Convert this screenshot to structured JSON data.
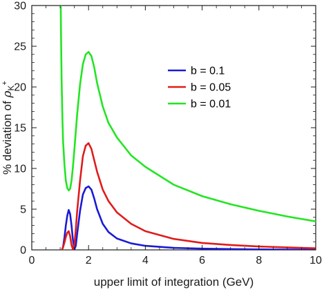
{
  "chart_data": {
    "type": "line",
    "title": "",
    "xlabel": "upper limit of integration (GeV)",
    "ylabel": "% deviation of ",
    "ylabel_symbol": "ρ",
    "ylabel_subscript": "K",
    "ylabel_superscript": "+",
    "xlim": [
      0,
      10
    ],
    "ylim": [
      0,
      30
    ],
    "xticks": [
      0,
      2,
      4,
      6,
      8,
      10
    ],
    "yticks": [
      0,
      5,
      10,
      15,
      20,
      25,
      30
    ],
    "xtick_labels": [
      "0",
      "2",
      "4",
      "6",
      "8",
      "10"
    ],
    "ytick_labels": [
      "0",
      "5",
      "10",
      "15",
      "20",
      "25",
      "30"
    ],
    "grid": false,
    "legend_position": "top-right",
    "series": [
      {
        "name": "b = 0.1",
        "color": "#1a1ad6",
        "x": [
          1.06,
          1.1,
          1.15,
          1.2,
          1.25,
          1.3,
          1.35,
          1.4,
          1.45,
          1.5,
          1.55,
          1.6,
          1.7,
          1.8,
          1.9,
          2.0,
          2.1,
          2.2,
          2.3,
          2.5,
          2.7,
          3.0,
          3.5,
          4.0,
          5.0,
          6.0,
          7.0,
          8.0,
          9.0,
          10.0
        ],
        "y": [
          0,
          0.3,
          1.5,
          3.0,
          4.2,
          4.9,
          4.4,
          3.0,
          1.2,
          0.05,
          0.5,
          2.0,
          4.8,
          6.8,
          7.6,
          7.8,
          7.4,
          6.3,
          5.0,
          3.2,
          2.2,
          1.4,
          0.8,
          0.5,
          0.25,
          0.15,
          0.1,
          0.06,
          0.04,
          0.03
        ]
      },
      {
        "name": "b = 0.05",
        "color": "#e01b1b",
        "x": [
          1.06,
          1.1,
          1.15,
          1.2,
          1.25,
          1.3,
          1.35,
          1.4,
          1.45,
          1.5,
          1.55,
          1.6,
          1.7,
          1.8,
          1.9,
          2.0,
          2.1,
          2.2,
          2.3,
          2.5,
          2.7,
          3.0,
          3.5,
          4.0,
          5.0,
          6.0,
          7.0,
          8.0,
          9.0,
          10.0
        ],
        "y": [
          0,
          0.3,
          0.9,
          1.6,
          2.1,
          2.3,
          1.7,
          0.6,
          0.05,
          0.6,
          2.5,
          4.8,
          8.5,
          11.5,
          12.8,
          13.1,
          12.4,
          11.0,
          9.6,
          7.4,
          6.0,
          4.6,
          3.2,
          2.3,
          1.35,
          0.85,
          0.6,
          0.42,
          0.3,
          0.2
        ]
      },
      {
        "name": "b = 0.01",
        "color": "#22e522",
        "x": [
          1.02,
          1.03,
          1.05,
          1.08,
          1.1,
          1.15,
          1.2,
          1.25,
          1.3,
          1.35,
          1.4,
          1.45,
          1.5,
          1.55,
          1.6,
          1.7,
          1.8,
          1.9,
          2.0,
          2.1,
          2.2,
          2.3,
          2.5,
          2.7,
          3.0,
          3.5,
          4.0,
          5.0,
          6.0,
          7.0,
          8.0,
          9.0,
          10.0
        ],
        "y": [
          30,
          26.5,
          21,
          16,
          13.5,
          10.5,
          8.5,
          7.6,
          7.3,
          7.5,
          8.5,
          10.2,
          12.3,
          14.5,
          16.7,
          20.3,
          22.8,
          24.0,
          24.3,
          23.8,
          22.4,
          20.5,
          17.6,
          15.6,
          13.8,
          11.6,
          10.2,
          8.0,
          6.6,
          5.6,
          4.8,
          4.1,
          3.5
        ]
      }
    ]
  }
}
